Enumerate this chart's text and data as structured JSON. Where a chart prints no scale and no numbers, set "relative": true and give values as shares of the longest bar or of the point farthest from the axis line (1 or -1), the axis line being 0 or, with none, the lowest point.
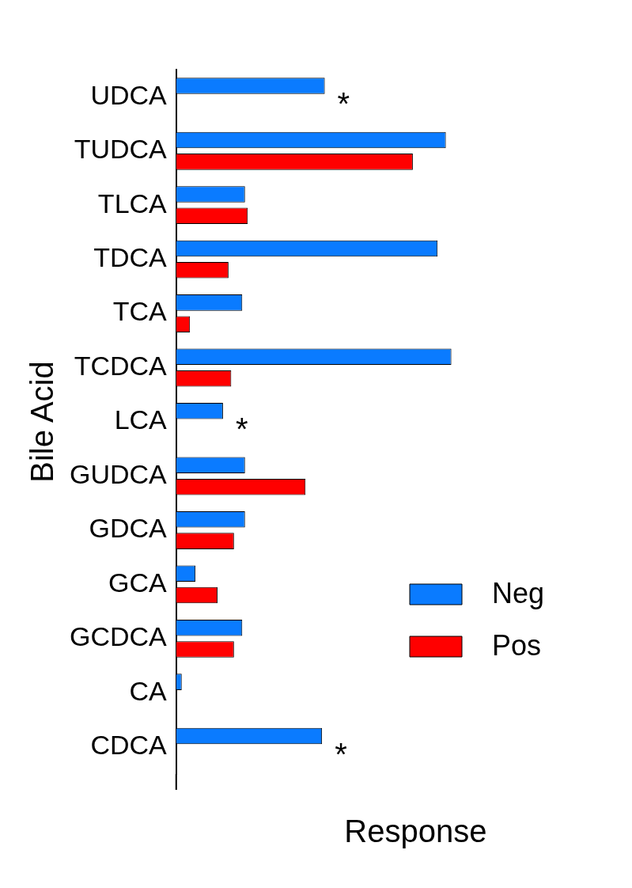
{
  "chart_data": {
    "type": "bar",
    "orientation": "horizontal",
    "relative": true,
    "xlabel": "Response",
    "ylabel": "Bile Acid",
    "categories": [
      "UDCA",
      "TUDCA",
      "TLCA",
      "TDCA",
      "TCA",
      "TCDCA",
      "LCA",
      "GUDCA",
      "GDCA",
      "GCA",
      "GCDCA",
      "CA",
      "CDCA"
    ],
    "series": [
      {
        "name": "Neg",
        "color": "#0a7bff",
        "values": [
          0.54,
          0.98,
          0.25,
          0.95,
          0.24,
          1,
          0.17,
          0.25,
          0.25,
          0.07,
          0.24,
          0.02,
          0.53
        ]
      },
      {
        "name": "Pos",
        "color": "#ff0000",
        "values": [
          null,
          0.86,
          0.26,
          0.19,
          0.05,
          0.2,
          null,
          0.47,
          0.21,
          0.15,
          0.21,
          null,
          null
        ]
      }
    ],
    "legend": "bottom right",
    "annotations": [
      {
        "text": "*",
        "x": 0.54,
        "y": "UDCA"
      },
      {
        "text": "*",
        "x": 0.17,
        "y": "LCA"
      },
      {
        "text": "*",
        "x": 0.53,
        "y": "CDCA"
      }
    ]
  }
}
